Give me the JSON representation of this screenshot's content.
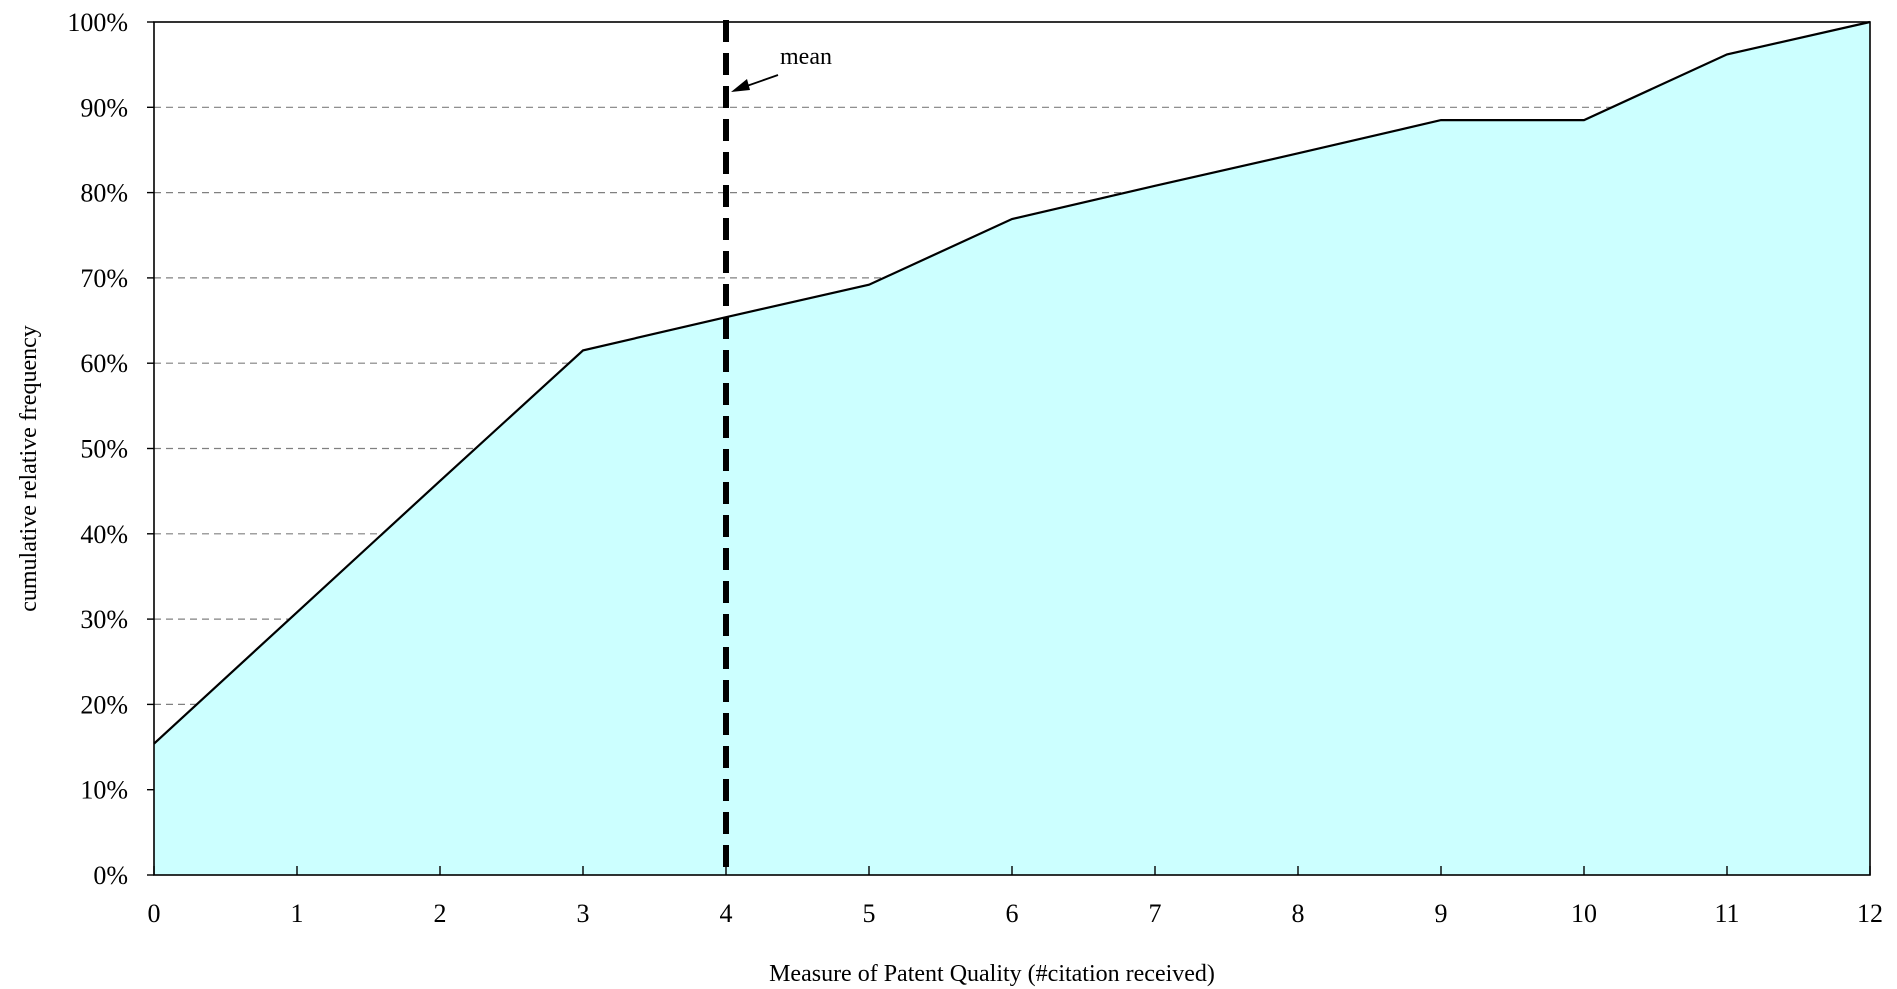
{
  "chart_data": {
    "type": "area",
    "title": "",
    "xlabel": "Measure of Patent Quality (#citation received)",
    "ylabel": "cumulative relative frequency",
    "x": [
      0,
      1,
      2,
      3,
      4,
      5,
      6,
      7,
      8,
      9,
      10,
      11,
      12
    ],
    "series": [
      {
        "values": [
          15.4,
          30.8,
          46.2,
          61.5,
          65.4,
          69.2,
          76.9,
          80.8,
          84.6,
          88.5,
          88.5,
          96.2,
          100
        ]
      }
    ],
    "xlim": [
      0,
      12
    ],
    "ylim": [
      0,
      100
    ],
    "y_ticks": [
      "0%",
      "10%",
      "20%",
      "30%",
      "40%",
      "50%",
      "60%",
      "70%",
      "80%",
      "90%",
      "100%"
    ],
    "x_ticks": [
      "0",
      "1",
      "2",
      "3",
      "4",
      "5",
      "6",
      "7",
      "8",
      "9",
      "10",
      "11",
      "12"
    ],
    "grid": "horizontal dashed",
    "mean": {
      "x": 4,
      "label": "mean"
    },
    "colors": {
      "fill": "#ccffff",
      "line": "#000000",
      "grid": "#808080"
    }
  }
}
